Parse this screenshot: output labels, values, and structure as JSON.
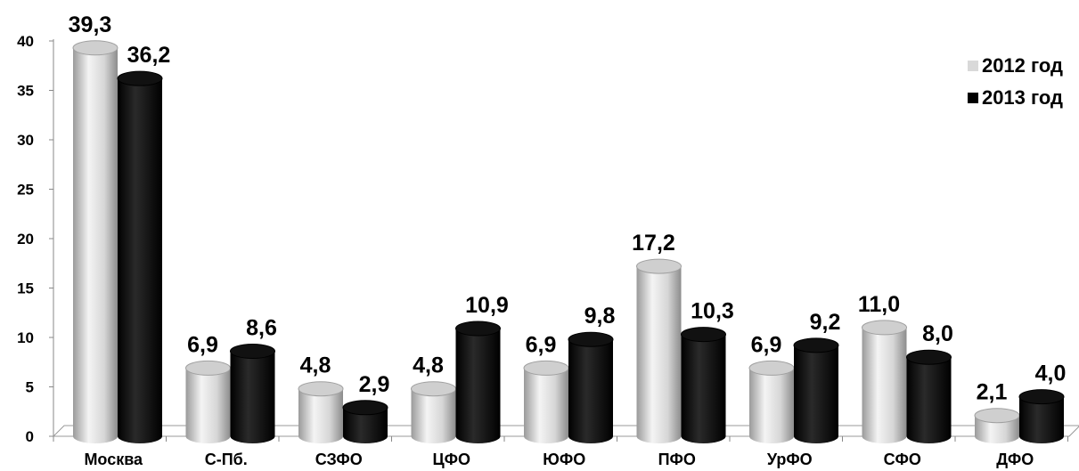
{
  "chart_data": {
    "type": "bar",
    "categories": [
      "Москва",
      "С-Пб.",
      "СЗФО",
      "ЦФО",
      "ЮФО",
      "ПФО",
      "УрФО",
      "СФО",
      "ДФО"
    ],
    "series": [
      {
        "name": "2012 год",
        "values": [
          39.3,
          6.9,
          4.8,
          4.8,
          6.9,
          17.2,
          6.9,
          11.0,
          2.1
        ],
        "labels": [
          "39,3",
          "6,9",
          "4,8",
          "4,8",
          "6,9",
          "17,2",
          "6,9",
          "11,0",
          "2,1"
        ],
        "color": "#d9d9d9"
      },
      {
        "name": "2013 год",
        "values": [
          36.2,
          8.6,
          2.9,
          10.9,
          9.8,
          10.3,
          9.2,
          8.0,
          4.0
        ],
        "labels": [
          "36,2",
          "8,6",
          "2,9",
          "10,9",
          "9,8",
          "10,3",
          "9,2",
          "8,0",
          "4,0"
        ],
        "color": "#000000"
      }
    ],
    "yticks": [
      "0",
      "5",
      "10",
      "15",
      "20",
      "25",
      "30",
      "35",
      "40"
    ],
    "ylim": [
      0,
      40
    ],
    "legend_position": "top-right",
    "grid": false
  }
}
